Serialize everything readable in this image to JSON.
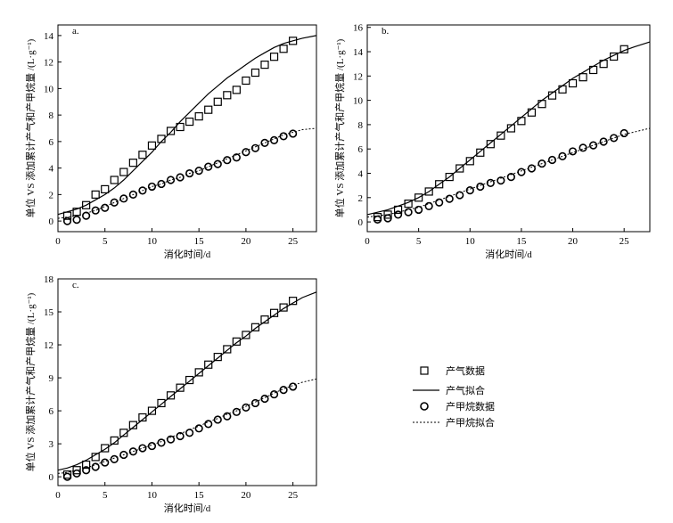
{
  "legend": {
    "gas_data": "产气数据",
    "gas_fit": "产气拟合",
    "methane_data": "产甲烷数据",
    "methane_fit": "产甲烷拟合"
  },
  "chart_data": [
    {
      "type": "scatter",
      "panel_label": "a.",
      "xlabel": "消化时间/d",
      "ylabel": "单位 VS 添加累计产气和产甲烷量 /(L·g⁻¹)",
      "xlim": [
        0,
        27.5
      ],
      "ylim": [
        -0.8,
        14.8
      ],
      "xticks": [
        0,
        5,
        10,
        15,
        20,
        25
      ],
      "yticks": [
        0,
        2,
        4,
        6,
        8,
        10,
        12,
        14
      ],
      "grid": false,
      "series": [
        {
          "name": "产气数据",
          "marker": "square",
          "x": [
            1,
            2,
            3,
            4,
            5,
            6,
            7,
            8,
            9,
            10,
            11,
            12,
            13,
            14,
            15,
            16,
            17,
            18,
            19,
            20,
            21,
            22,
            23,
            24,
            25
          ],
          "y": [
            0.4,
            0.7,
            1.2,
            2.0,
            2.4,
            3.1,
            3.7,
            4.4,
            5.0,
            5.7,
            6.2,
            6.8,
            7.1,
            7.5,
            7.9,
            8.4,
            9.0,
            9.5,
            9.9,
            10.6,
            11.2,
            11.8,
            12.4,
            13.0,
            13.6
          ]
        },
        {
          "name": "产气拟合",
          "style": "solid",
          "x": [
            0,
            1,
            2,
            3,
            4,
            5,
            6,
            7,
            8,
            9,
            10,
            11,
            12,
            13,
            14,
            15,
            16,
            17,
            18,
            19,
            20,
            21,
            22,
            23,
            24,
            25,
            26,
            27.5
          ],
          "y": [
            0.5,
            0.7,
            0.9,
            1.2,
            1.6,
            2.0,
            2.5,
            3.1,
            3.8,
            4.5,
            5.2,
            6.0,
            6.7,
            7.5,
            8.2,
            8.9,
            9.6,
            10.2,
            10.8,
            11.3,
            11.8,
            12.3,
            12.7,
            13.1,
            13.4,
            13.6,
            13.8,
            14.0
          ]
        },
        {
          "name": "产甲烷数据",
          "marker": "circle",
          "x": [
            1,
            2,
            3,
            4,
            5,
            6,
            7,
            8,
            9,
            10,
            11,
            12,
            13,
            14,
            15,
            16,
            17,
            18,
            19,
            20,
            21,
            22,
            23,
            24,
            25
          ],
          "y": [
            0.0,
            0.1,
            0.4,
            0.8,
            1.0,
            1.4,
            1.7,
            2.0,
            2.3,
            2.6,
            2.8,
            3.1,
            3.3,
            3.6,
            3.8,
            4.1,
            4.3,
            4.6,
            4.8,
            5.2,
            5.5,
            5.9,
            6.1,
            6.4,
            6.6
          ]
        },
        {
          "name": "产甲烷拟合",
          "style": "dotted",
          "x": [
            0,
            1,
            2,
            3,
            4,
            5,
            6,
            7,
            8,
            9,
            10,
            11,
            12,
            13,
            14,
            15,
            16,
            17,
            18,
            19,
            20,
            21,
            22,
            23,
            24,
            25,
            26,
            27.5
          ],
          "y": [
            0.2,
            0.3,
            0.4,
            0.6,
            0.8,
            1.1,
            1.4,
            1.7,
            2.0,
            2.3,
            2.6,
            2.8,
            3.1,
            3.3,
            3.6,
            3.8,
            4.1,
            4.4,
            4.7,
            5.0,
            5.3,
            5.6,
            5.9,
            6.2,
            6.5,
            6.7,
            6.9,
            7.0
          ]
        }
      ]
    },
    {
      "type": "scatter",
      "panel_label": "b.",
      "xlabel": "消化时间/d",
      "ylabel": "单位 VS 添加累计产气和产甲烷量 /(L·g⁻¹)",
      "xlim": [
        0,
        27.5
      ],
      "ylim": [
        -0.8,
        16.2
      ],
      "xticks": [
        0,
        5,
        10,
        15,
        20,
        25
      ],
      "yticks": [
        0,
        2,
        4,
        6,
        8,
        10,
        12,
        14,
        16
      ],
      "grid": false,
      "series": [
        {
          "name": "产气数据",
          "marker": "square",
          "x": [
            1,
            2,
            3,
            4,
            5,
            6,
            7,
            8,
            9,
            10,
            11,
            12,
            13,
            14,
            15,
            16,
            17,
            18,
            19,
            20,
            21,
            22,
            23,
            24,
            25
          ],
          "y": [
            0.4,
            0.6,
            1.0,
            1.5,
            2.0,
            2.5,
            3.1,
            3.7,
            4.4,
            5.0,
            5.7,
            6.4,
            7.1,
            7.7,
            8.3,
            9.0,
            9.7,
            10.4,
            10.9,
            11.4,
            11.9,
            12.5,
            13.0,
            13.6,
            14.2
          ]
        },
        {
          "name": "产气拟合",
          "style": "solid",
          "x": [
            0,
            1,
            2,
            3,
            4,
            5,
            6,
            7,
            8,
            9,
            10,
            11,
            12,
            13,
            14,
            15,
            16,
            17,
            18,
            19,
            20,
            21,
            22,
            23,
            24,
            25,
            26,
            27.5
          ],
          "y": [
            0.6,
            0.8,
            1.0,
            1.3,
            1.6,
            2.0,
            2.5,
            3.1,
            3.7,
            4.4,
            5.1,
            5.8,
            6.5,
            7.2,
            7.9,
            8.6,
            9.3,
            10.0,
            10.6,
            11.2,
            11.8,
            12.3,
            12.8,
            13.3,
            13.7,
            14.1,
            14.4,
            14.8
          ]
        },
        {
          "name": "产甲烷数据",
          "marker": "circle",
          "x": [
            1,
            2,
            3,
            4,
            5,
            6,
            7,
            8,
            9,
            10,
            11,
            12,
            13,
            14,
            15,
            16,
            17,
            18,
            19,
            20,
            21,
            22,
            23,
            24,
            25
          ],
          "y": [
            0.2,
            0.3,
            0.6,
            0.8,
            1.0,
            1.3,
            1.6,
            1.9,
            2.2,
            2.6,
            2.9,
            3.2,
            3.4,
            3.7,
            4.1,
            4.4,
            4.8,
            5.1,
            5.4,
            5.8,
            6.1,
            6.3,
            6.6,
            6.9,
            7.3
          ]
        },
        {
          "name": "产甲烷拟合",
          "style": "dotted",
          "x": [
            0,
            1,
            2,
            3,
            4,
            5,
            6,
            7,
            8,
            9,
            10,
            11,
            12,
            13,
            14,
            15,
            16,
            17,
            18,
            19,
            20,
            21,
            22,
            23,
            24,
            25,
            26,
            27.5
          ],
          "y": [
            0.4,
            0.5,
            0.6,
            0.8,
            1.0,
            1.2,
            1.5,
            1.8,
            2.1,
            2.4,
            2.7,
            3.0,
            3.3,
            3.6,
            3.9,
            4.2,
            4.5,
            4.8,
            5.1,
            5.4,
            5.7,
            6.0,
            6.3,
            6.6,
            6.9,
            7.2,
            7.4,
            7.7
          ]
        }
      ]
    },
    {
      "type": "scatter",
      "panel_label": "c.",
      "xlabel": "消化时间/d",
      "ylabel": "单位 VS 添加累计产气和产甲烷量 /(L·g⁻¹)",
      "xlim": [
        0,
        27.5
      ],
      "ylim": [
        -0.8,
        18.0
      ],
      "xticks": [
        0,
        5,
        10,
        15,
        20,
        25
      ],
      "yticks": [
        0,
        3,
        6,
        9,
        12,
        15,
        18
      ],
      "grid": false,
      "series": [
        {
          "name": "产气数据",
          "marker": "square",
          "x": [
            1,
            2,
            3,
            4,
            5,
            6,
            7,
            8,
            9,
            10,
            11,
            12,
            13,
            14,
            15,
            16,
            17,
            18,
            19,
            20,
            21,
            22,
            23,
            24,
            25
          ],
          "y": [
            0.2,
            0.6,
            1.1,
            1.8,
            2.6,
            3.3,
            4.0,
            4.7,
            5.4,
            6.0,
            6.7,
            7.4,
            8.1,
            8.8,
            9.5,
            10.2,
            10.9,
            11.6,
            12.3,
            12.9,
            13.6,
            14.3,
            14.9,
            15.4,
            16.0
          ]
        },
        {
          "name": "产气拟合",
          "style": "solid",
          "x": [
            0,
            1,
            2,
            3,
            4,
            5,
            6,
            7,
            8,
            9,
            10,
            11,
            12,
            13,
            14,
            15,
            16,
            17,
            18,
            19,
            20,
            21,
            22,
            23,
            24,
            25,
            26,
            27.5
          ],
          "y": [
            0.6,
            0.8,
            1.1,
            1.5,
            2.0,
            2.5,
            3.1,
            3.8,
            4.5,
            5.2,
            5.9,
            6.6,
            7.3,
            8.0,
            8.7,
            9.4,
            10.1,
            10.8,
            11.5,
            12.2,
            12.8,
            13.5,
            14.1,
            14.7,
            15.3,
            15.8,
            16.3,
            16.8
          ]
        },
        {
          "name": "产甲烷数据",
          "marker": "circle",
          "x": [
            1,
            2,
            3,
            4,
            5,
            6,
            7,
            8,
            9,
            10,
            11,
            12,
            13,
            14,
            15,
            16,
            17,
            18,
            19,
            20,
            21,
            22,
            23,
            24,
            25
          ],
          "y": [
            0.0,
            0.3,
            0.6,
            0.9,
            1.3,
            1.6,
            2.0,
            2.3,
            2.6,
            2.8,
            3.1,
            3.4,
            3.7,
            4.0,
            4.4,
            4.8,
            5.2,
            5.5,
            5.9,
            6.3,
            6.7,
            7.1,
            7.5,
            7.9,
            8.2
          ]
        },
        {
          "name": "产甲烷拟合",
          "style": "dotted",
          "x": [
            0,
            1,
            2,
            3,
            4,
            5,
            6,
            7,
            8,
            9,
            10,
            11,
            12,
            13,
            14,
            15,
            16,
            17,
            18,
            19,
            20,
            21,
            22,
            23,
            24,
            25,
            26,
            27.5
          ],
          "y": [
            0.3,
            0.4,
            0.6,
            0.8,
            1.1,
            1.4,
            1.7,
            2.0,
            2.3,
            2.6,
            2.9,
            3.2,
            3.6,
            3.9,
            4.3,
            4.6,
            5.0,
            5.3,
            5.7,
            6.0,
            6.4,
            6.8,
            7.2,
            7.6,
            8.0,
            8.3,
            8.6,
            8.9
          ]
        }
      ]
    }
  ]
}
